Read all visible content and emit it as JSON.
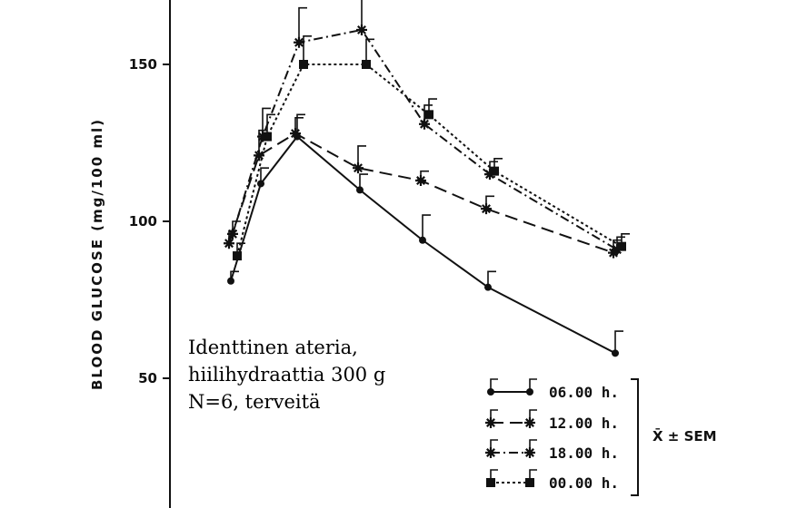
{
  "chart_data": {
    "type": "line",
    "title": "",
    "ylabel": "BLOOD GLUCOSE (mg/100 ml)",
    "xlabel": "",
    "ylim": [
      0,
      170
    ],
    "yticks": [
      50,
      100,
      150
    ],
    "grid": false,
    "legend_position": "bottom-right",
    "x": [
      0,
      1,
      2,
      3,
      4,
      5,
      6
    ],
    "series": [
      {
        "name": "06.00 h.",
        "style": "solid",
        "marker": "circle",
        "values": [
          81,
          112,
          127,
          110,
          94,
          79,
          58
        ],
        "sem": [
          3,
          5,
          7,
          5,
          8,
          5,
          7
        ]
      },
      {
        "name": "12.00 h.",
        "style": "dashed",
        "marker": "star",
        "values": [
          93,
          121,
          128,
          117,
          113,
          104,
          90
        ],
        "sem": [
          4,
          8,
          5,
          7,
          3,
          4,
          4
        ]
      },
      {
        "name": "18.00 h.",
        "style": "dash-dot",
        "marker": "star-dot",
        "values": [
          96,
          127,
          157,
          161,
          131,
          115,
          91
        ],
        "sem": [
          4,
          9,
          11,
          12,
          6,
          4,
          4
        ]
      },
      {
        "name": "00.00 h.",
        "style": "dotted",
        "marker": "square",
        "values": [
          89,
          127,
          150,
          150,
          134,
          116,
          92
        ],
        "sem": [
          4,
          7,
          9,
          8,
          5,
          4,
          4
        ]
      }
    ],
    "sem_label": "X̄ ± SEM"
  },
  "annotation": {
    "lines": [
      "Identtinen ateria,",
      "hiilihydraattia 300 g",
      "N=6, terveitä"
    ]
  }
}
